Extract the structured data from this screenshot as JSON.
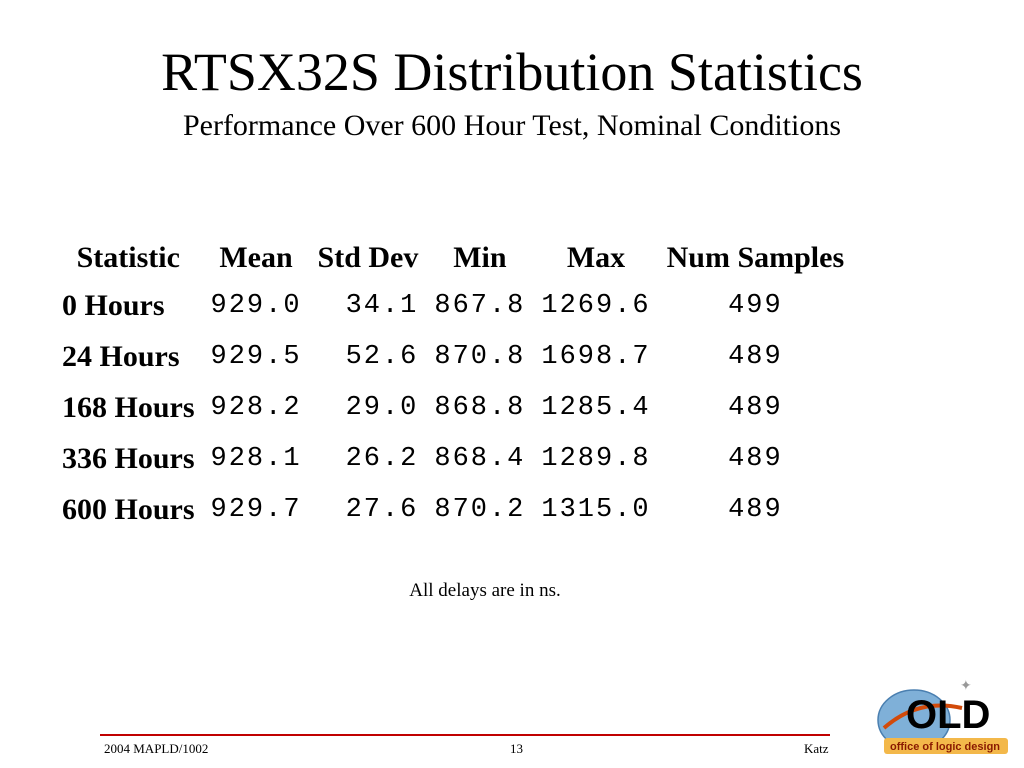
{
  "slide": {
    "title": "RTSX32S Distribution Statistics",
    "subtitle": "Performance Over 600 Hour Test, Nominal Conditions",
    "note": "All delays are in ns."
  },
  "table": {
    "headers": [
      "Statistic",
      "Mean",
      "Std Dev",
      "Min",
      "Max",
      "Num Samples"
    ],
    "rows": [
      [
        "0 Hours",
        "929.0",
        "34.1",
        "867.8",
        "1269.6",
        "499"
      ],
      [
        "24 Hours",
        "929.5",
        "52.6",
        "870.8",
        "1698.7",
        "489"
      ],
      [
        "168 Hours",
        "928.2",
        "29.0",
        "868.8",
        "1285.4",
        "489"
      ],
      [
        "336 Hours",
        "928.1",
        "26.2",
        "868.4",
        "1289.8",
        "489"
      ],
      [
        "600 Hours",
        "929.7",
        "27.6",
        "870.2",
        "1315.0",
        "489"
      ]
    ]
  },
  "footer": {
    "left": "2004 MAPLD/1002",
    "page": "13",
    "right": "Katz"
  },
  "logo": {
    "text": "OLD",
    "tagline": "office of logic design",
    "accent_color": "#d24a0a",
    "globe_color": "#7fb0d8"
  }
}
